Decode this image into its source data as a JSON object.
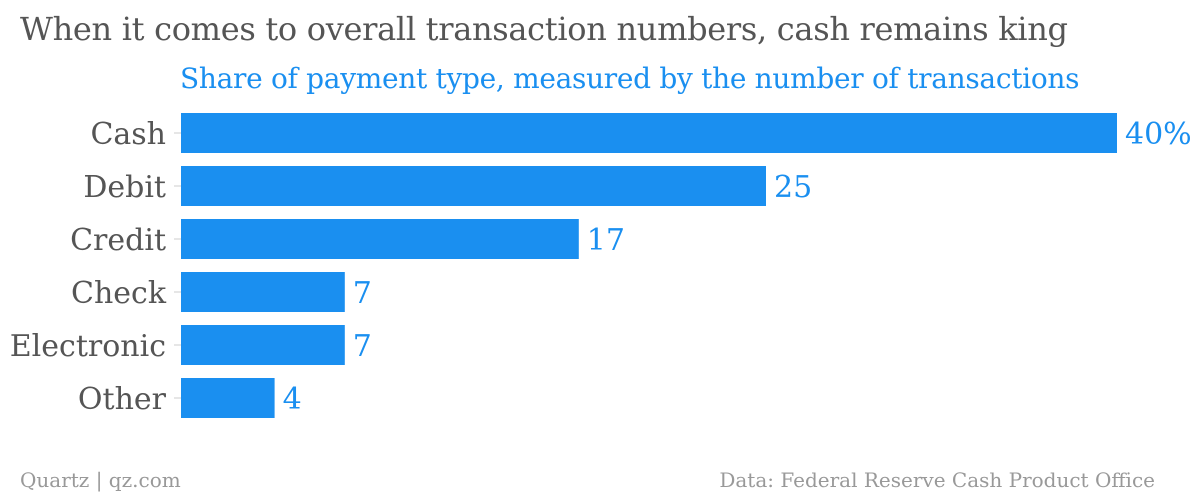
{
  "headline": "When it comes to overall transaction numbers, cash remains king",
  "footer": {
    "credit": "Quartz | qz.com",
    "source": "Data: Federal Reserve Cash Product Office"
  },
  "colors": {
    "bar": "#1a8ff0",
    "label": "#1a8ff0",
    "category": "#555555",
    "tick": "#cccccc"
  },
  "chart_data": {
    "type": "bar",
    "orientation": "horizontal",
    "title": "Share of payment type, measured by the number of transactions",
    "categories": [
      "Cash",
      "Debit",
      "Credit",
      "Check",
      "Electronic",
      "Other"
    ],
    "values": [
      40,
      25,
      17,
      7,
      7,
      4
    ],
    "value_labels": [
      "40%",
      "25",
      "17",
      "7",
      "7",
      "4"
    ],
    "xlim": [
      0,
      40
    ],
    "grid": false
  }
}
